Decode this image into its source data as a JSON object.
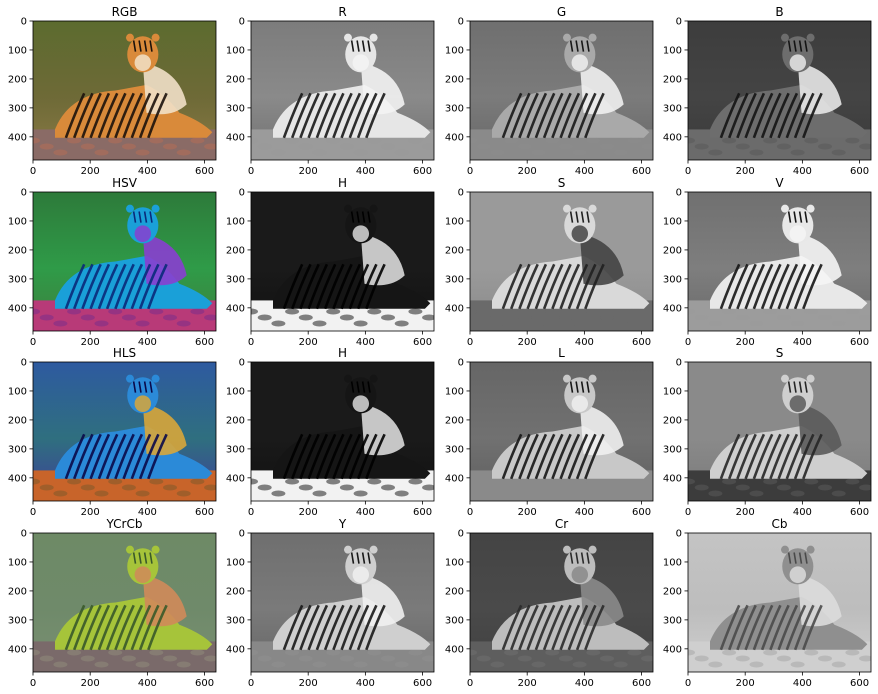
{
  "figure": {
    "xticks": [
      "0",
      "200",
      "400",
      "600"
    ],
    "yticks": [
      "0",
      "100",
      "200",
      "300",
      "400"
    ],
    "panels": [
      {
        "title": "RGB",
        "mode": "rgb"
      },
      {
        "title": "R",
        "mode": "gray_r"
      },
      {
        "title": "G",
        "mode": "gray_g"
      },
      {
        "title": "B",
        "mode": "gray_b"
      },
      {
        "title": "HSV",
        "mode": "hsv"
      },
      {
        "title": "H",
        "mode": "hue"
      },
      {
        "title": "S",
        "mode": "sat"
      },
      {
        "title": "V",
        "mode": "val"
      },
      {
        "title": "HLS",
        "mode": "hls"
      },
      {
        "title": "H",
        "mode": "hue"
      },
      {
        "title": "L",
        "mode": "light"
      },
      {
        "title": "S",
        "mode": "sat2"
      },
      {
        "title": "YCrCb",
        "mode": "ycrcb"
      },
      {
        "title": "Y",
        "mode": "luma"
      },
      {
        "title": "Cr",
        "mode": "cr"
      },
      {
        "title": "Cb",
        "mode": "cb"
      }
    ]
  }
}
